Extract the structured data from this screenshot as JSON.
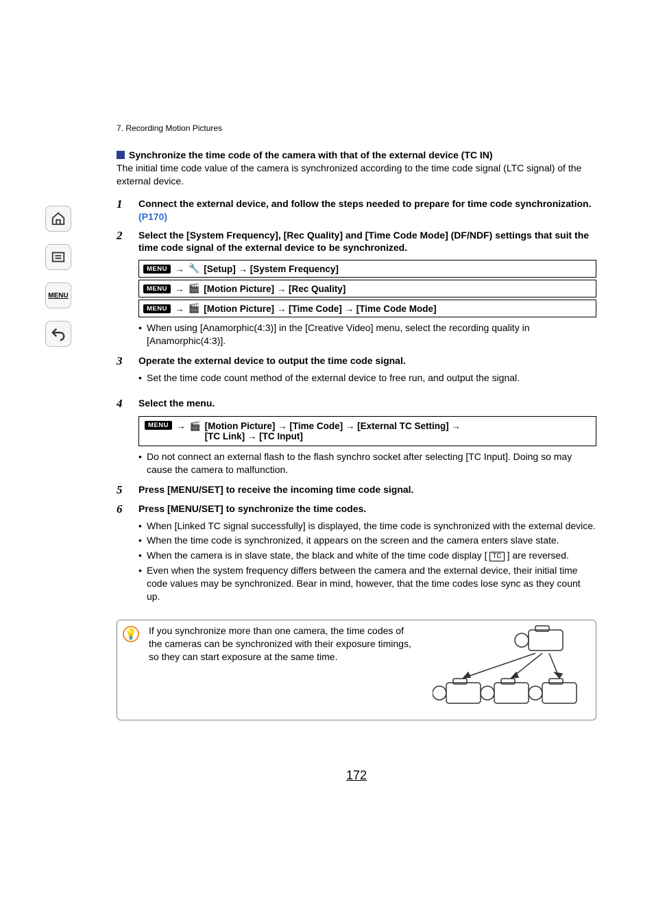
{
  "chapter": "7. Recording Motion Pictures",
  "section_title": "Synchronize the time code of the camera with that of the external device (TC IN)",
  "intro": "The initial time code value of the camera is synchronized according to the time code signal (LTC signal) of the external device.",
  "steps": [
    {
      "n": "1",
      "bold": "Connect the external device, and follow the steps needed to prepare for time code synchronization. ",
      "link": "(P170)"
    },
    {
      "n": "2",
      "bold": "Select the [System Frequency], [Rec Quality] and [Time Code Mode] (DF/NDF) settings that suit the time code signal of the external device to be synchronized."
    }
  ],
  "menu_rows_2": [
    {
      "icon": "wrench",
      "path": "[Setup] → [System Frequency]"
    },
    {
      "icon": "video",
      "path": "[Motion Picture] → [Rec Quality]"
    },
    {
      "icon": "video",
      "path": "[Motion Picture] → [Time Code] → [Time Code Mode]"
    }
  ],
  "note_after_2": "When using [Anamorphic(4:3)] in the [Creative Video] menu, select the recording quality in [Anamorphic(4:3)].",
  "step3": {
    "n": "3",
    "bold": "Operate the external device to output the time code signal.",
    "bullet": "Set the time code count method of the external device to free run, and output the signal."
  },
  "step4": {
    "n": "4",
    "bold": "Select the menu."
  },
  "menu_row_4": {
    "icon": "video",
    "path1": "[Motion Picture] → [Time Code] → [External TC Setting] →",
    "path2": "[TC Link] → [TC Input]"
  },
  "note_after_4": "Do not connect an external flash to the flash synchro socket after selecting [TC Input]. Doing so may cause the camera to malfunction.",
  "step5": {
    "n": "5",
    "bold": "Press [MENU/SET] to receive the incoming time code signal."
  },
  "step6": {
    "n": "6",
    "bold": "Press [MENU/SET] to synchronize the time codes.",
    "bullets": [
      "When [Linked TC signal successfully] is displayed, the time code is synchronized with the external device.",
      "When the time code is synchronized, it appears on the screen and the camera enters slave state.",
      {
        "pre": "When the camera is in slave state, the black and white of the time code display [ ",
        "tc": "TC",
        "post": " ] are reversed."
      },
      "Even when the system frequency differs between the camera and the external device, their initial time code values may be synchronized. Bear in mind, however, that the time codes lose sync as they count up."
    ]
  },
  "tip": "If you synchronize more than one camera, the time codes of the cameras can be synchronized with their exposure timings, so they can start exposure at the same time.",
  "menu_label": "MENU",
  "page_number": "172",
  "colors": {
    "blue_square": "#2a3e8f",
    "link": "#2a6dd4",
    "tip_orange": "#e89028"
  }
}
